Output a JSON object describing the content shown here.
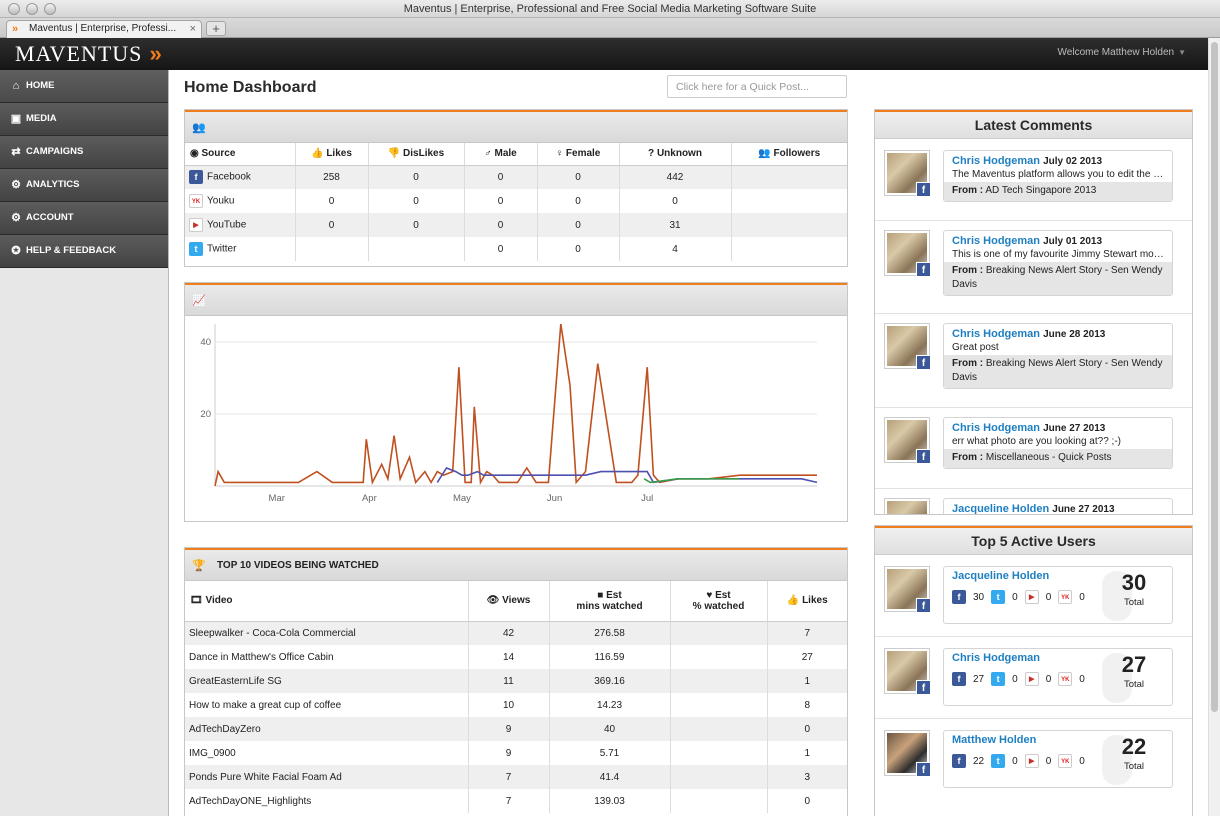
{
  "window": {
    "title": "Maventus | Enterprise, Professional and Free Social Media Marketing Software Suite"
  },
  "browser": {
    "tab_title": "Maventus | Enterprise, Professi...",
    "new_tab": "+",
    "tab_close": "×"
  },
  "header": {
    "logo": "MAVENTUS",
    "welcome": "Welcome Matthew Holden"
  },
  "sidebar": {
    "items": [
      {
        "label": "HOME",
        "icon": "home-icon"
      },
      {
        "label": "MEDIA",
        "icon": "camera-icon"
      },
      {
        "label": "CAMPAIGNS",
        "icon": "shuffle-icon"
      },
      {
        "label": "ANALYTICS",
        "icon": "gear-icon"
      },
      {
        "label": "ACCOUNT",
        "icon": "gear-icon"
      },
      {
        "label": "HELP & FEEDBACK",
        "icon": "lifebuoy-icon"
      }
    ]
  },
  "main": {
    "title": "Home Dashboard",
    "quick_post_placeholder": "Click here for a Quick Post..."
  },
  "sources": {
    "columns": [
      "Source",
      "Likes",
      "DisLikes",
      "Male",
      "Female",
      "Unknown",
      "Followers"
    ],
    "rows": [
      {
        "source": "Facebook",
        "icon": "facebook-icon",
        "likes": "258",
        "dislikes": "0",
        "male": "0",
        "female": "0",
        "unknown": "442",
        "followers": ""
      },
      {
        "source": "Youku",
        "icon": "youku-icon",
        "likes": "0",
        "dislikes": "0",
        "male": "0",
        "female": "0",
        "unknown": "0",
        "followers": ""
      },
      {
        "source": "YouTube",
        "icon": "youtube-icon",
        "likes": "0",
        "dislikes": "0",
        "male": "0",
        "female": "0",
        "unknown": "31",
        "followers": ""
      },
      {
        "source": "Twitter",
        "icon": "twitter-icon",
        "likes": "",
        "dislikes": "",
        "male": "0",
        "female": "0",
        "unknown": "4",
        "followers": ""
      }
    ]
  },
  "chart_data": {
    "type": "line",
    "title": "",
    "xlabel": "",
    "ylabel": "",
    "x_ticks": [
      "Mar",
      "Apr",
      "May",
      "Jun",
      "Jul"
    ],
    "y_ticks": [
      20,
      40
    ],
    "ylim": [
      0,
      45
    ],
    "grid": true,
    "series": [
      {
        "color": "#c0501f",
        "values": [
          [
            0,
            0
          ],
          [
            1,
            4
          ],
          [
            3,
            1
          ],
          [
            8,
            1
          ],
          [
            14,
            1
          ],
          [
            20,
            1
          ],
          [
            27,
            1
          ],
          [
            33,
            4
          ],
          [
            38,
            1
          ],
          [
            42,
            1
          ],
          [
            48,
            1
          ],
          [
            49,
            13
          ],
          [
            51,
            1
          ],
          [
            54,
            6
          ],
          [
            56,
            2
          ],
          [
            58,
            14
          ],
          [
            60,
            2
          ],
          [
            63,
            8
          ],
          [
            65,
            1
          ],
          [
            68,
            4
          ],
          [
            70,
            1
          ],
          [
            72,
            4
          ],
          [
            74,
            3
          ],
          [
            77,
            4
          ],
          [
            79,
            33
          ],
          [
            81,
            1
          ],
          [
            83,
            1
          ],
          [
            84,
            22
          ],
          [
            86,
            1
          ],
          [
            88,
            4
          ],
          [
            90,
            3
          ],
          [
            92,
            1
          ],
          [
            95,
            1
          ],
          [
            98,
            1
          ],
          [
            101,
            5
          ],
          [
            104,
            1
          ],
          [
            108,
            1
          ],
          [
            112,
            45
          ],
          [
            115,
            28
          ],
          [
            117,
            1
          ],
          [
            120,
            4
          ],
          [
            124,
            34
          ],
          [
            130,
            1
          ],
          [
            135,
            1
          ],
          [
            137,
            3
          ],
          [
            140,
            33
          ],
          [
            142,
            3
          ],
          [
            144,
            1
          ],
          [
            150,
            2
          ],
          [
            160,
            2
          ],
          [
            170,
            3
          ],
          [
            180,
            3
          ],
          [
            195,
            3
          ]
        ]
      },
      {
        "color": "#4f4fb0",
        "values": [
          [
            72,
            1
          ],
          [
            75,
            5
          ],
          [
            78,
            4
          ],
          [
            80,
            3
          ],
          [
            82,
            3
          ],
          [
            85,
            4
          ],
          [
            87,
            3
          ],
          [
            90,
            3
          ],
          [
            95,
            3
          ],
          [
            100,
            3
          ],
          [
            105,
            3
          ],
          [
            110,
            3
          ],
          [
            115,
            3
          ],
          [
            120,
            3
          ],
          [
            125,
            4
          ],
          [
            130,
            4
          ],
          [
            135,
            4
          ],
          [
            140,
            4
          ],
          [
            142,
            1
          ],
          [
            150,
            2
          ],
          [
            160,
            2
          ],
          [
            170,
            2
          ],
          [
            180,
            2
          ],
          [
            190,
            2
          ],
          [
            195,
            1
          ]
        ]
      },
      {
        "color": "#3a9a4a",
        "values": [
          [
            139,
            2
          ],
          [
            141,
            1
          ],
          [
            150,
            2
          ],
          [
            160,
            2
          ],
          [
            170,
            2
          ]
        ]
      }
    ]
  },
  "videos": {
    "title": "TOP 10 VIDEOS BEING WATCHED",
    "columns": {
      "video": "Video",
      "views": "Views",
      "mins_1": "Est",
      "mins_2": "mins watched",
      "pct_1": "Est",
      "pct_2": "% watched",
      "likes": "Likes"
    },
    "rows": [
      {
        "video": "Sleepwalker - Coca-Cola Commercial",
        "views": "42",
        "mins": "276.58",
        "pct": "",
        "likes": "7"
      },
      {
        "video": "Dance in Matthew's Office Cabin",
        "views": "14",
        "mins": "116.59",
        "pct": "",
        "likes": "27"
      },
      {
        "video": "GreatEasternLife SG",
        "views": "11",
        "mins": "369.16",
        "pct": "",
        "likes": "1"
      },
      {
        "video": "How to make a great cup of coffee",
        "views": "10",
        "mins": "14.23",
        "pct": "",
        "likes": "8"
      },
      {
        "video": "AdTechDayZero",
        "views": "9",
        "mins": "40",
        "pct": "",
        "likes": "0"
      },
      {
        "video": "IMG_0900",
        "views": "9",
        "mins": "5.71",
        "pct": "",
        "likes": "1"
      },
      {
        "video": "Ponds Pure White Facial Foam Ad",
        "views": "7",
        "mins": "41.4",
        "pct": "",
        "likes": "3"
      },
      {
        "video": "AdTechDayONE_Highlights",
        "views": "7",
        "mins": "139.03",
        "pct": "",
        "likes": "0"
      }
    ]
  },
  "comments": {
    "title": "Latest Comments",
    "from_label": "From :",
    "items": [
      {
        "name": "Chris Hodgeman",
        "date": "July 02 2013",
        "text": "The Maventus platform allows you to edit the p...",
        "from": "AD Tech Singapore 2013"
      },
      {
        "name": "Chris Hodgeman",
        "date": "July 01 2013",
        "text": "This is one of my favourite Jimmy Stewart movi...",
        "from": "Breaking News Alert Story - Sen Wendy Davis"
      },
      {
        "name": "Chris Hodgeman",
        "date": "June 28 2013",
        "text": "Great post",
        "from": "Breaking News Alert Story - Sen Wendy Davis"
      },
      {
        "name": "Chris Hodgeman",
        "date": "June 27 2013",
        "text": "err what photo are you looking at?? ;-)",
        "from": "Miscellaneous - Quick Posts"
      },
      {
        "name": "Jacqueline Holden",
        "date": "June 27 2013",
        "text": "",
        "from": ""
      }
    ]
  },
  "top_users": {
    "title": "Top 5 Active Users",
    "total_label": "Total",
    "items": [
      {
        "name": "Jacqueline Holden",
        "fb": "30",
        "tw": "0",
        "yt": "0",
        "yk": "0",
        "total": "30"
      },
      {
        "name": "Chris Hodgeman",
        "fb": "27",
        "tw": "0",
        "yt": "0",
        "yk": "0",
        "total": "27"
      },
      {
        "name": "Matthew Holden",
        "fb": "22",
        "tw": "0",
        "yt": "0",
        "yk": "0",
        "total": "22"
      }
    ]
  },
  "colors": {
    "accent": "#f07d1e",
    "link": "#1d7fc2",
    "sidebar": "#4a4a4a"
  }
}
